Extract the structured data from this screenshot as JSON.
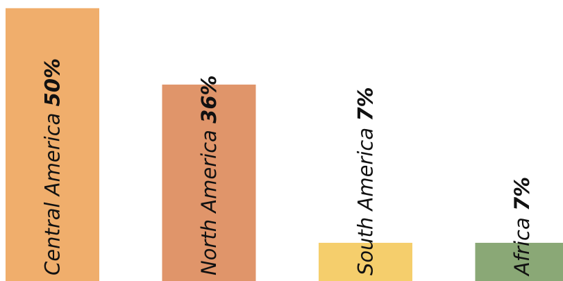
{
  "chart_data": {
    "type": "bar",
    "categories": [
      "Central America",
      "North America",
      "South America",
      "Africa"
    ],
    "values": [
      50,
      36,
      7,
      7
    ],
    "value_labels": [
      "50%",
      "36%",
      "7%",
      "7%"
    ],
    "colors": [
      "#F0AE6C",
      "#E0956A",
      "#F5CE6C",
      "#8AA876"
    ],
    "title": "",
    "xlabel": "",
    "ylabel": "",
    "ylim": [
      0,
      51.5
    ],
    "grid": false,
    "legend": "none",
    "label_orientation": "vertical"
  }
}
